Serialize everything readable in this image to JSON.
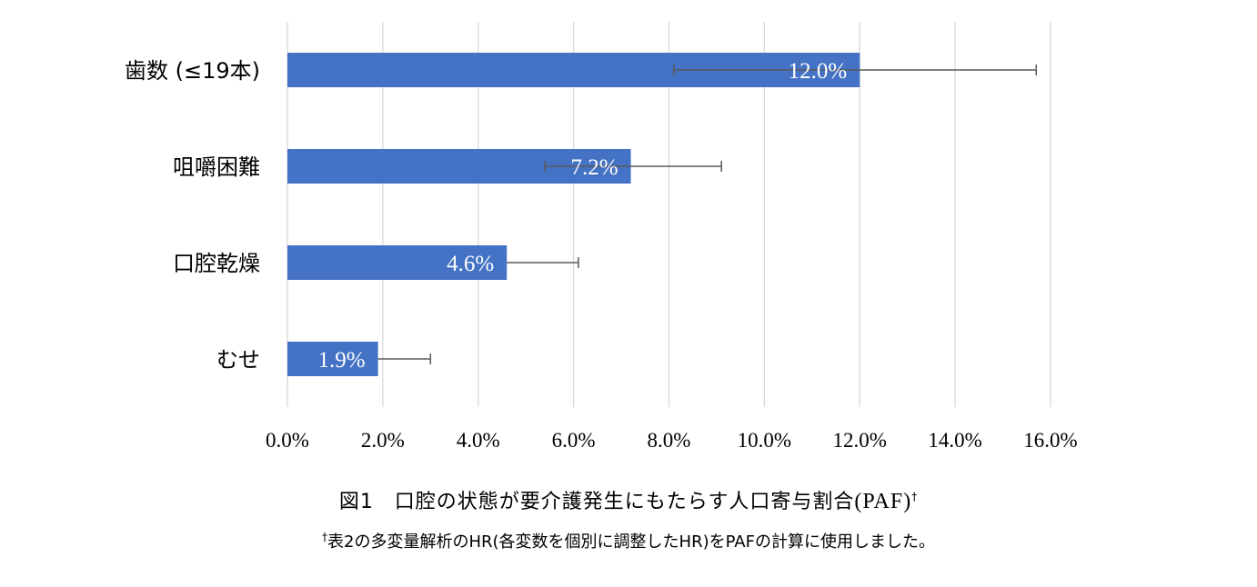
{
  "chart_data": {
    "type": "bar",
    "orientation": "horizontal",
    "categories": [
      "歯数 (≤19本)",
      "咀嚼困難",
      "口腔乾燥",
      "むせ"
    ],
    "values": [
      12.0,
      7.2,
      4.6,
      1.9
    ],
    "value_labels": [
      "12.0%",
      "7.2%",
      "4.6%",
      "1.9%"
    ],
    "error_low": [
      8.1,
      5.4,
      null,
      null
    ],
    "error_high": [
      15.7,
      9.1,
      6.1,
      3.0
    ],
    "xlim": [
      0,
      16
    ],
    "x_ticks": [
      0,
      2,
      4,
      6,
      8,
      10,
      12,
      14,
      16
    ],
    "x_tick_labels": [
      "0.0%",
      "2.0%",
      "4.0%",
      "6.0%",
      "8.0%",
      "10.0%",
      "12.0%",
      "14.0%",
      "16.0%"
    ],
    "grid": "vertical",
    "legend": "none",
    "bar_color": "#4472C4",
    "grid_color": "#D9D9D9",
    "error_color": "#595959"
  },
  "caption": {
    "title_prefix": "図1　口腔の状態が要介護発生にもたらす人口寄与割合",
    "title_paren": "(PAF)",
    "dagger": "†",
    "note": "表2の多変量解析のHR(各変数を個別に調整したHR)をPAFの計算に使用しました。"
  }
}
